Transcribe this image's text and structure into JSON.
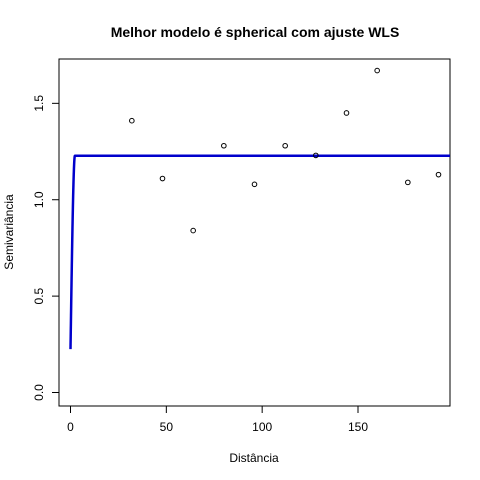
{
  "chart_data": {
    "type": "scatter",
    "title": "Melhor modelo é spherical com ajuste  WLS",
    "xlabel": "Distância",
    "ylabel": "Semivariância",
    "xlim": [
      -6,
      198
    ],
    "ylim": [
      -0.07,
      1.73
    ],
    "x_ticks": [
      0,
      50,
      100,
      150
    ],
    "y_ticks": [
      0.0,
      0.5,
      1.0,
      1.5
    ],
    "x_tick_labels": [
      "0",
      "50",
      "100",
      "150"
    ],
    "y_tick_labels": [
      "0.0",
      "0.5",
      "1.0",
      "1.5"
    ],
    "points": [
      {
        "x": 32,
        "y": 1.41
      },
      {
        "x": 48,
        "y": 1.11
      },
      {
        "x": 64,
        "y": 0.84
      },
      {
        "x": 80,
        "y": 1.28
      },
      {
        "x": 96,
        "y": 1.08
      },
      {
        "x": 112,
        "y": 1.28
      },
      {
        "x": 128,
        "y": 1.23
      },
      {
        "x": 144,
        "y": 1.45
      },
      {
        "x": 160,
        "y": 1.67
      },
      {
        "x": 176,
        "y": 1.09
      },
      {
        "x": 192,
        "y": 1.13
      }
    ],
    "model": {
      "type": "spherical",
      "nugget": 0.225,
      "sill": 1.228,
      "range": 2.3,
      "color": "#0000cc"
    },
    "grid": false,
    "legend": "none"
  }
}
